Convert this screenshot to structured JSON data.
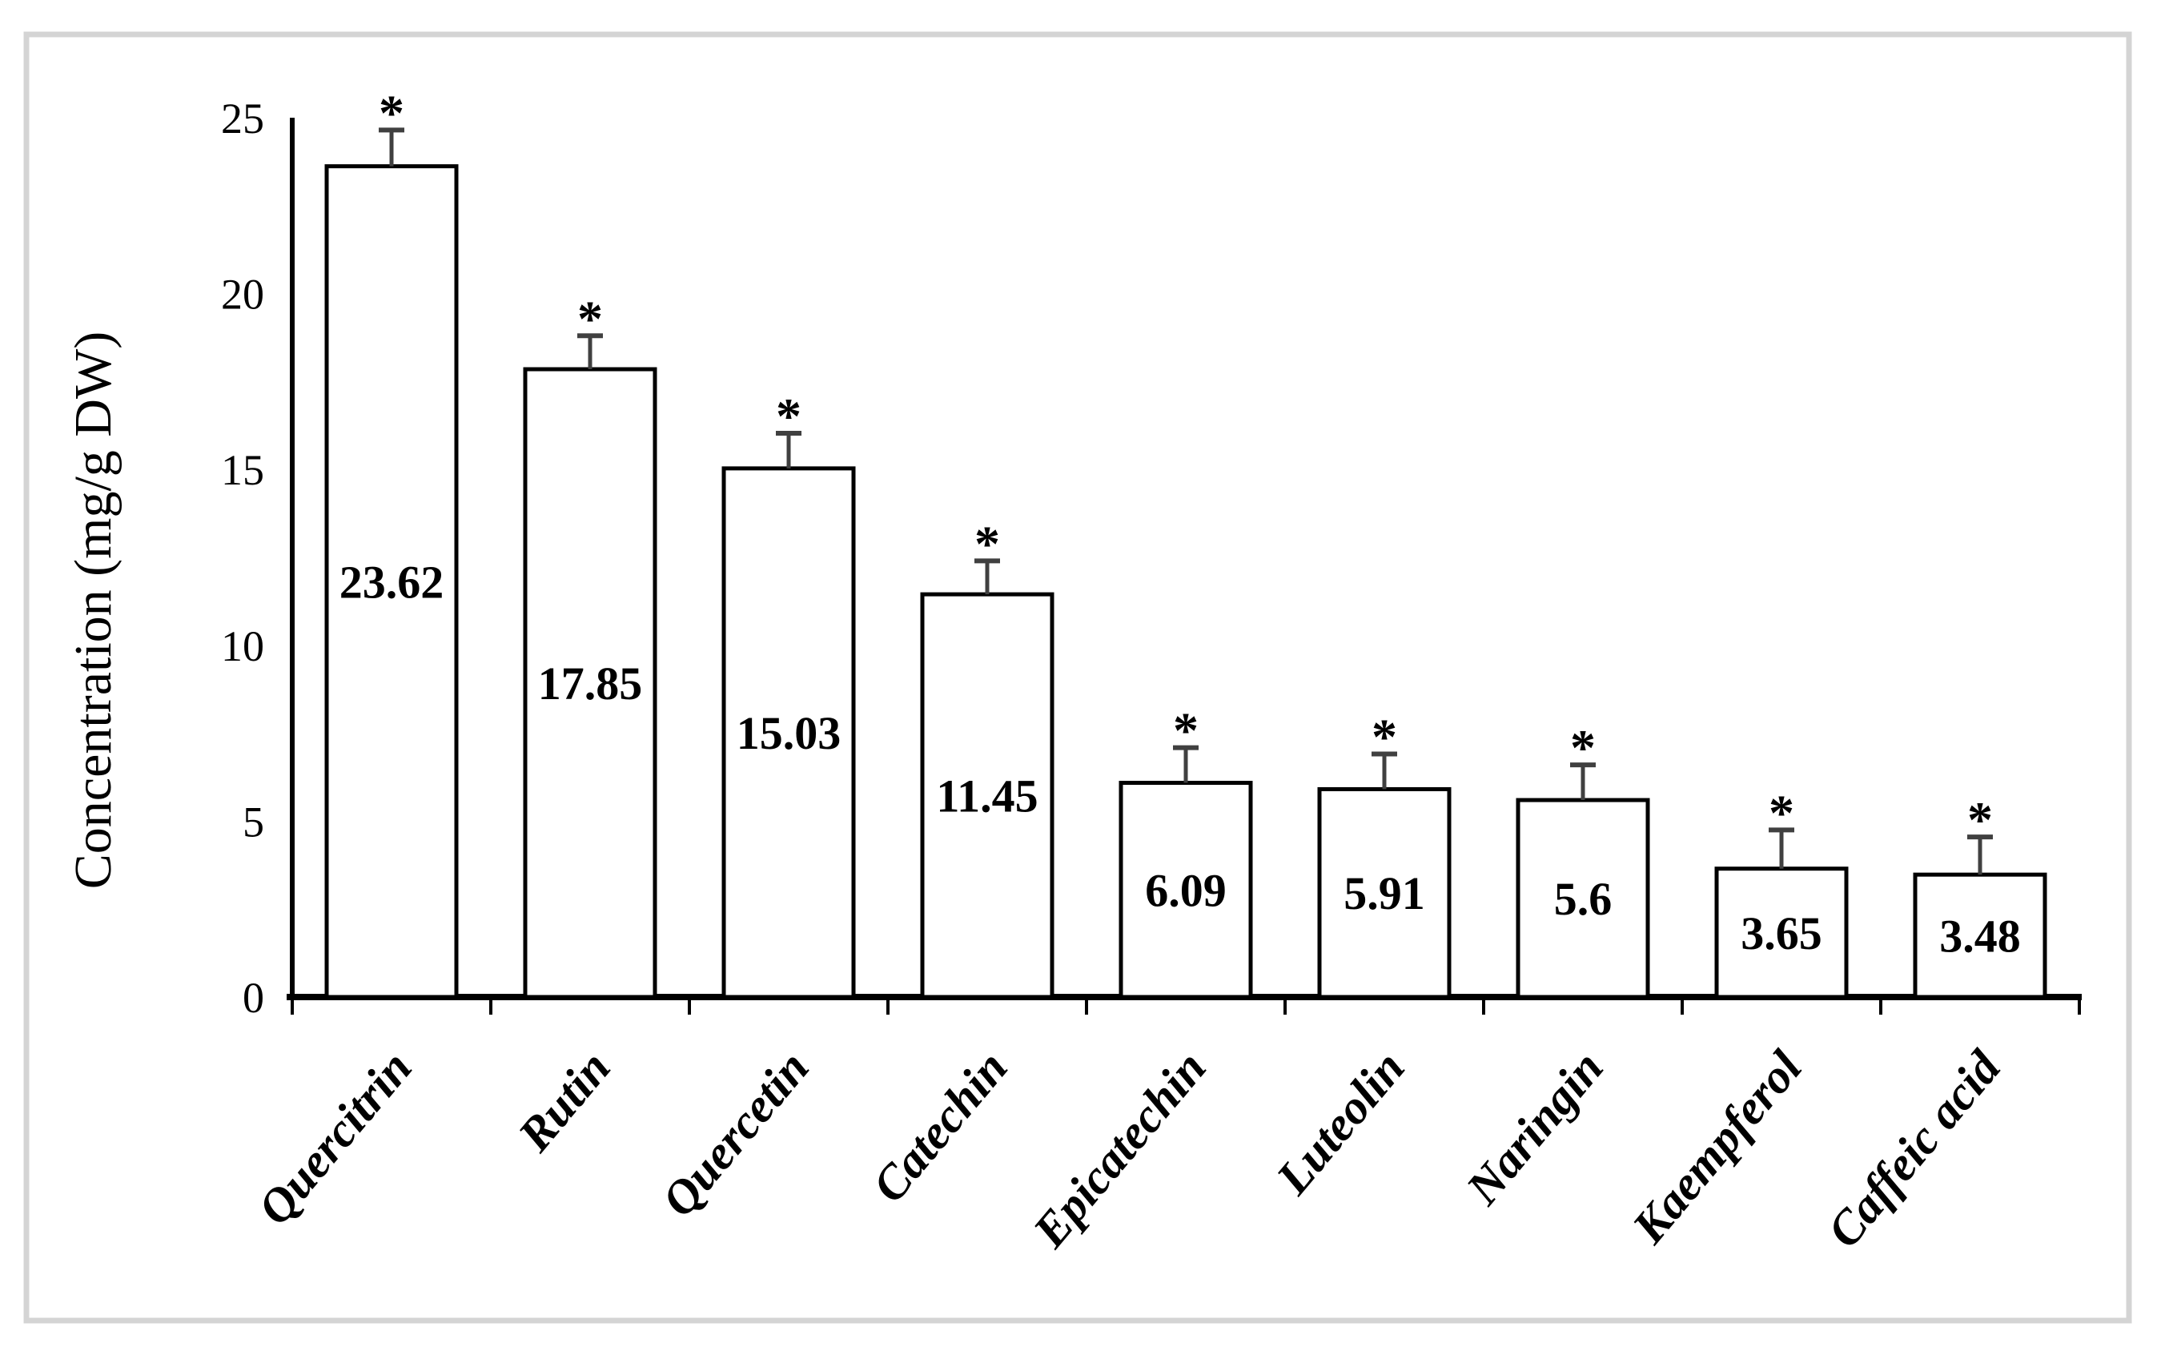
{
  "figure": {
    "background_color": "#ffffff",
    "frame_color": "#d4d4d4",
    "axis_color": "#000000",
    "error_bar_color": "#404040"
  },
  "chart_data": {
    "type": "bar",
    "title": "",
    "xlabel": "",
    "ylabel": "Concentration (mg/g DW)",
    "ylim": [
      0,
      25
    ],
    "yticks": [
      "0",
      "5",
      "10",
      "15",
      "20",
      "25"
    ],
    "ytick_values": [
      0,
      5,
      10,
      15,
      20,
      25
    ],
    "grid": false,
    "legend": null,
    "categories": [
      "Quercitrin",
      "Rutin",
      "Quercetin",
      "Catechin",
      "Epicatechin",
      "Luteolin",
      "Naringin",
      "Kaempferol",
      "Caffeic acid"
    ],
    "series": [
      {
        "name": "Concentration (mg/g DW)",
        "values": [
          23.62,
          17.85,
          15.03,
          11.45,
          6.09,
          5.91,
          5.6,
          3.65,
          3.48
        ],
        "value_labels": [
          "23.62",
          "17.85",
          "15.03",
          "11.45",
          "6.09",
          "5.91",
          "5.6",
          "3.65",
          "3.48"
        ],
        "errors": [
          1.03,
          0.95,
          1.0,
          0.95,
          1.0,
          1.0,
          1.0,
          1.1,
          1.07
        ],
        "significance": [
          "*",
          "*",
          "*",
          "*",
          "*",
          "*",
          "*",
          "*",
          "*"
        ]
      }
    ],
    "bar_style": {
      "fill": "#ffffff",
      "stroke": "#000000"
    },
    "annotations_note": "asterisks above error bars indicate significance"
  }
}
